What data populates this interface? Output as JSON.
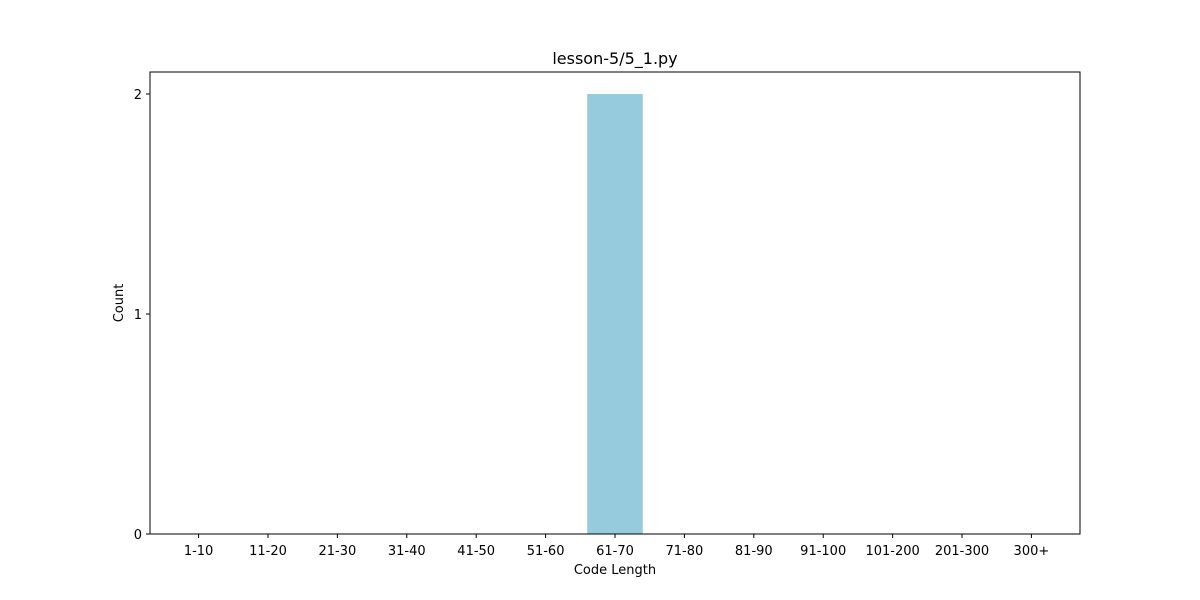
{
  "chart_data": {
    "type": "bar",
    "title": "lesson-5/5_1.py",
    "xlabel": "Code Length",
    "ylabel": "Count",
    "categories": [
      "1-10",
      "11-20",
      "21-30",
      "31-40",
      "41-50",
      "51-60",
      "61-70",
      "71-80",
      "81-90",
      "91-100",
      "101-200",
      "201-300",
      "300+"
    ],
    "values": [
      0,
      0,
      0,
      0,
      0,
      0,
      2,
      0,
      0,
      0,
      0,
      0,
      0
    ],
    "ylim": [
      0,
      2.1
    ],
    "yticks": [
      0,
      1,
      2
    ],
    "grid": false,
    "bar_color": "#96cadd"
  }
}
